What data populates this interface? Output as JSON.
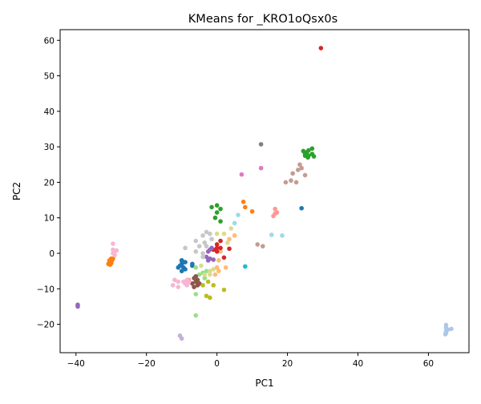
{
  "chart_data": {
    "type": "scatter",
    "title": "KMeans for _KRO1oQsx0s",
    "xlabel": "PC1",
    "ylabel": "PC2",
    "xlim": [
      -44.5,
      71.5
    ],
    "ylim": [
      -28,
      63
    ],
    "xticks": [
      -40,
      -20,
      0,
      20,
      40,
      60
    ],
    "yticks": [
      -20,
      -10,
      0,
      10,
      20,
      30,
      40,
      50,
      60
    ],
    "grid": false,
    "legend": "none",
    "series": [
      {
        "color": "#1f77b4",
        "points": [
          [
            -10,
            -2
          ],
          [
            -9.5,
            -2.5
          ],
          [
            -10,
            -3
          ],
          [
            -9,
            -2.5
          ],
          [
            -10.5,
            -3.5
          ],
          [
            -11,
            -4
          ],
          [
            -9.5,
            -4
          ],
          [
            -10,
            -5
          ],
          [
            -9,
            -4.5
          ],
          [
            -10,
            -2
          ],
          [
            -7,
            -3
          ],
          [
            -7,
            -3.5
          ],
          [
            24,
            12.7
          ]
        ]
      },
      {
        "color": "#aec7e8",
        "points": [
          [
            65,
            -20.2
          ],
          [
            65,
            -21
          ],
          [
            65.5,
            -21.5
          ],
          [
            65,
            -22
          ],
          [
            65,
            -22.5
          ],
          [
            66.5,
            -21.3
          ],
          [
            64.8,
            -22.8
          ]
        ]
      },
      {
        "color": "#ff7f0e",
        "points": [
          [
            -30,
            -1.5
          ],
          [
            -30.2,
            -2
          ],
          [
            -30.5,
            -2.5
          ],
          [
            -30.8,
            -3
          ],
          [
            -30.3,
            -3.2
          ],
          [
            -30,
            -2.8
          ],
          [
            -29.8,
            -2
          ],
          [
            -30.5,
            -2
          ],
          [
            -29.5,
            -1.5
          ],
          [
            7.5,
            14.5
          ],
          [
            8,
            13
          ],
          [
            10,
            11.8
          ]
        ]
      },
      {
        "color": "#ffbb78",
        "points": [
          [
            0,
            -4
          ],
          [
            0.5,
            -5
          ],
          [
            -0.5,
            -6
          ],
          [
            0.5,
            -2
          ],
          [
            2.5,
            -4
          ],
          [
            1,
            0.5
          ],
          [
            3.5,
            4
          ],
          [
            5,
            5
          ]
        ]
      },
      {
        "color": "#2ca02c",
        "points": [
          [
            0,
            13.5
          ],
          [
            1,
            12.5
          ],
          [
            0,
            11.5
          ],
          [
            1,
            9
          ],
          [
            -1.5,
            13
          ],
          [
            -0.5,
            10
          ],
          [
            25,
            28
          ],
          [
            25.5,
            28.5
          ],
          [
            26,
            29
          ],
          [
            26,
            27.5
          ],
          [
            27,
            28
          ],
          [
            25,
            27.5
          ],
          [
            27,
            29.5
          ],
          [
            24.5,
            28.8
          ],
          [
            25.8,
            27
          ],
          [
            27.5,
            27.3
          ]
        ]
      },
      {
        "color": "#98df8a",
        "points": [
          [
            -5,
            -6
          ],
          [
            -4,
            -5.5
          ],
          [
            -3.5,
            -7
          ],
          [
            -6,
            -4
          ],
          [
            -6,
            -11.5
          ],
          [
            -6,
            -17.5
          ],
          [
            -3,
            -5
          ]
        ]
      },
      {
        "color": "#d62728",
        "points": [
          [
            29.5,
            57.8
          ],
          [
            0,
            2.5
          ],
          [
            1,
            1.5
          ],
          [
            0,
            0.5
          ],
          [
            1,
            3.5
          ],
          [
            -1,
            1
          ],
          [
            0,
            1.5
          ],
          [
            3.5,
            1.3
          ],
          [
            2,
            -1.2
          ]
        ]
      },
      {
        "color": "#ff9896",
        "points": [
          [
            16.5,
            12.5
          ],
          [
            16,
            10.5
          ],
          [
            17,
            11.5
          ],
          [
            16.5,
            11.2
          ],
          [
            -9,
            -8
          ],
          [
            -8,
            -7.5
          ]
        ]
      },
      {
        "color": "#9467bd",
        "points": [
          [
            -39.5,
            -14.5
          ],
          [
            -39.5,
            -15
          ],
          [
            -3,
            -1
          ],
          [
            -2,
            -1.5
          ],
          [
            -1,
            -1.8
          ],
          [
            -2.5,
            -2
          ],
          [
            -2,
            1
          ],
          [
            -1.5,
            1.5
          ],
          [
            -2.5,
            0.5
          ]
        ]
      },
      {
        "color": "#c5b0d5",
        "points": [
          [
            -10.5,
            -23.2
          ],
          [
            -10,
            -24
          ]
        ]
      },
      {
        "color": "#8c564b",
        "points": [
          [
            -6,
            -6.5
          ],
          [
            -6.5,
            -7
          ],
          [
            -5.5,
            -7.5
          ],
          [
            -6,
            -8
          ],
          [
            -5.5,
            -9
          ],
          [
            -6.5,
            -9.5
          ],
          [
            -7,
            -8.5
          ],
          [
            -5,
            -8.5
          ]
        ]
      },
      {
        "color": "#c49c94",
        "points": [
          [
            19.5,
            20
          ],
          [
            21,
            20.5
          ],
          [
            22.5,
            20
          ],
          [
            21.5,
            22.5
          ],
          [
            23,
            23.5
          ],
          [
            23.5,
            25
          ],
          [
            24,
            24
          ],
          [
            25,
            22
          ],
          [
            11.5,
            2.5
          ],
          [
            13,
            2
          ]
        ]
      },
      {
        "color": "#e377c2",
        "points": [
          [
            7,
            22.2
          ],
          [
            12.5,
            24
          ]
        ]
      },
      {
        "color": "#f7b6d2",
        "points": [
          [
            -29.5,
            2.7
          ],
          [
            -29.5,
            1
          ],
          [
            -29,
            0.5
          ],
          [
            -28.5,
            0.8
          ],
          [
            -29.5,
            0
          ],
          [
            -29,
            -0.5
          ],
          [
            -8.5,
            -7.5
          ],
          [
            -9,
            -8.5
          ],
          [
            -8,
            -8.2
          ],
          [
            -9.5,
            -8
          ],
          [
            -12,
            -7.5
          ],
          [
            -12.5,
            -9
          ],
          [
            -11,
            -9.5
          ],
          [
            -11,
            -8
          ],
          [
            -8.5,
            -9
          ]
        ]
      },
      {
        "color": "#7f7f7f",
        "points": [
          [
            12.5,
            30.7
          ]
        ]
      },
      {
        "color": "#c7c7c7",
        "points": [
          [
            -9,
            1.5
          ],
          [
            -6,
            3.5
          ],
          [
            -5,
            2
          ],
          [
            -4,
            5
          ],
          [
            -3,
            6
          ],
          [
            -2,
            5.5
          ],
          [
            -1.5,
            4
          ],
          [
            -4,
            0
          ],
          [
            -6,
            0.5
          ],
          [
            -3,
            2
          ],
          [
            -4,
            -1
          ],
          [
            -3.5,
            3
          ]
        ]
      },
      {
        "color": "#bcbd22",
        "points": [
          [
            -3,
            -12
          ],
          [
            -2,
            -12.5
          ],
          [
            2,
            -10.3
          ],
          [
            -1,
            -9
          ],
          [
            -2.5,
            -8
          ],
          [
            -4,
            -9
          ]
        ]
      },
      {
        "color": "#dbdb8d",
        "points": [
          [
            0,
            5.5
          ],
          [
            2,
            5.5
          ],
          [
            4,
            7
          ],
          [
            3,
            3
          ],
          [
            -2,
            -6
          ],
          [
            -1,
            -4.5
          ],
          [
            -4.5,
            -3.5
          ],
          [
            -3.5,
            -6
          ],
          [
            -2,
            -5
          ]
        ]
      },
      {
        "color": "#17becf",
        "points": [
          [
            8,
            -3.7
          ]
        ]
      },
      {
        "color": "#9edae5",
        "points": [
          [
            6,
            10.8
          ],
          [
            5,
            8.5
          ],
          [
            15.5,
            5.2
          ],
          [
            18.5,
            5
          ]
        ]
      }
    ]
  }
}
